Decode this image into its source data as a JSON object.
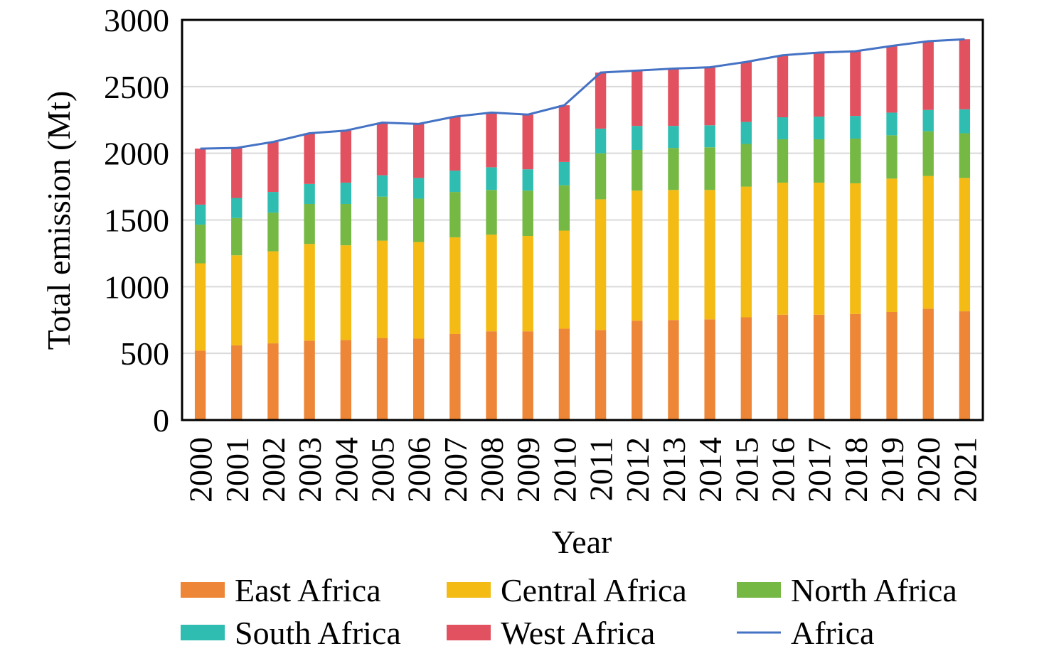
{
  "chart_data": {
    "type": "bar",
    "stacked": true,
    "xlabel": "Year",
    "ylabel": "Total emission (Mt)",
    "ylim": [
      0,
      3000
    ],
    "yticks": [
      0,
      500,
      1000,
      1500,
      2000,
      2500,
      3000
    ],
    "grid": true,
    "legend_position": "bottom",
    "categories": [
      "2000",
      "2001",
      "2002",
      "2003",
      "2004",
      "2005",
      "2006",
      "2007",
      "2008",
      "2009",
      "2010",
      "2011",
      "2012",
      "2013",
      "2014",
      "2015",
      "2016",
      "2017",
      "2018",
      "2019",
      "2020",
      "2021"
    ],
    "series": [
      {
        "name": "East Africa",
        "color": "#ed8636",
        "values": [
          520,
          560,
          575,
          595,
          600,
          615,
          610,
          645,
          665,
          665,
          685,
          675,
          745,
          750,
          755,
          770,
          790,
          790,
          795,
          810,
          835,
          815
        ]
      },
      {
        "name": "Central Africa",
        "color": "#f4bb14",
        "values": [
          655,
          675,
          690,
          725,
          710,
          730,
          725,
          725,
          725,
          715,
          735,
          980,
          975,
          975,
          970,
          980,
          990,
          990,
          980,
          1000,
          995,
          1000
        ]
      },
      {
        "name": "North Africa",
        "color": "#75b843",
        "values": [
          290,
          280,
          290,
          300,
          310,
          330,
          325,
          340,
          335,
          340,
          340,
          345,
          305,
          315,
          320,
          320,
          325,
          325,
          335,
          325,
          335,
          335
        ]
      },
      {
        "name": "South Africa",
        "color": "#2ebdb0",
        "values": [
          150,
          150,
          155,
          150,
          160,
          160,
          155,
          160,
          170,
          160,
          175,
          185,
          180,
          165,
          165,
          165,
          165,
          170,
          170,
          170,
          160,
          180
        ]
      },
      {
        "name": "West Africa",
        "color": "#e2515f",
        "values": [
          420,
          375,
          375,
          380,
          390,
          395,
          405,
          405,
          410,
          410,
          425,
          420,
          415,
          430,
          435,
          450,
          465,
          480,
          485,
          500,
          515,
          525
        ]
      }
    ],
    "line": {
      "name": "Africa",
      "color": "#4472c4",
      "values": [
        2035,
        2040,
        2085,
        2150,
        2170,
        2230,
        2220,
        2275,
        2305,
        2290,
        2360,
        2605,
        2620,
        2635,
        2645,
        2685,
        2735,
        2755,
        2765,
        2805,
        2840,
        2855
      ]
    }
  }
}
